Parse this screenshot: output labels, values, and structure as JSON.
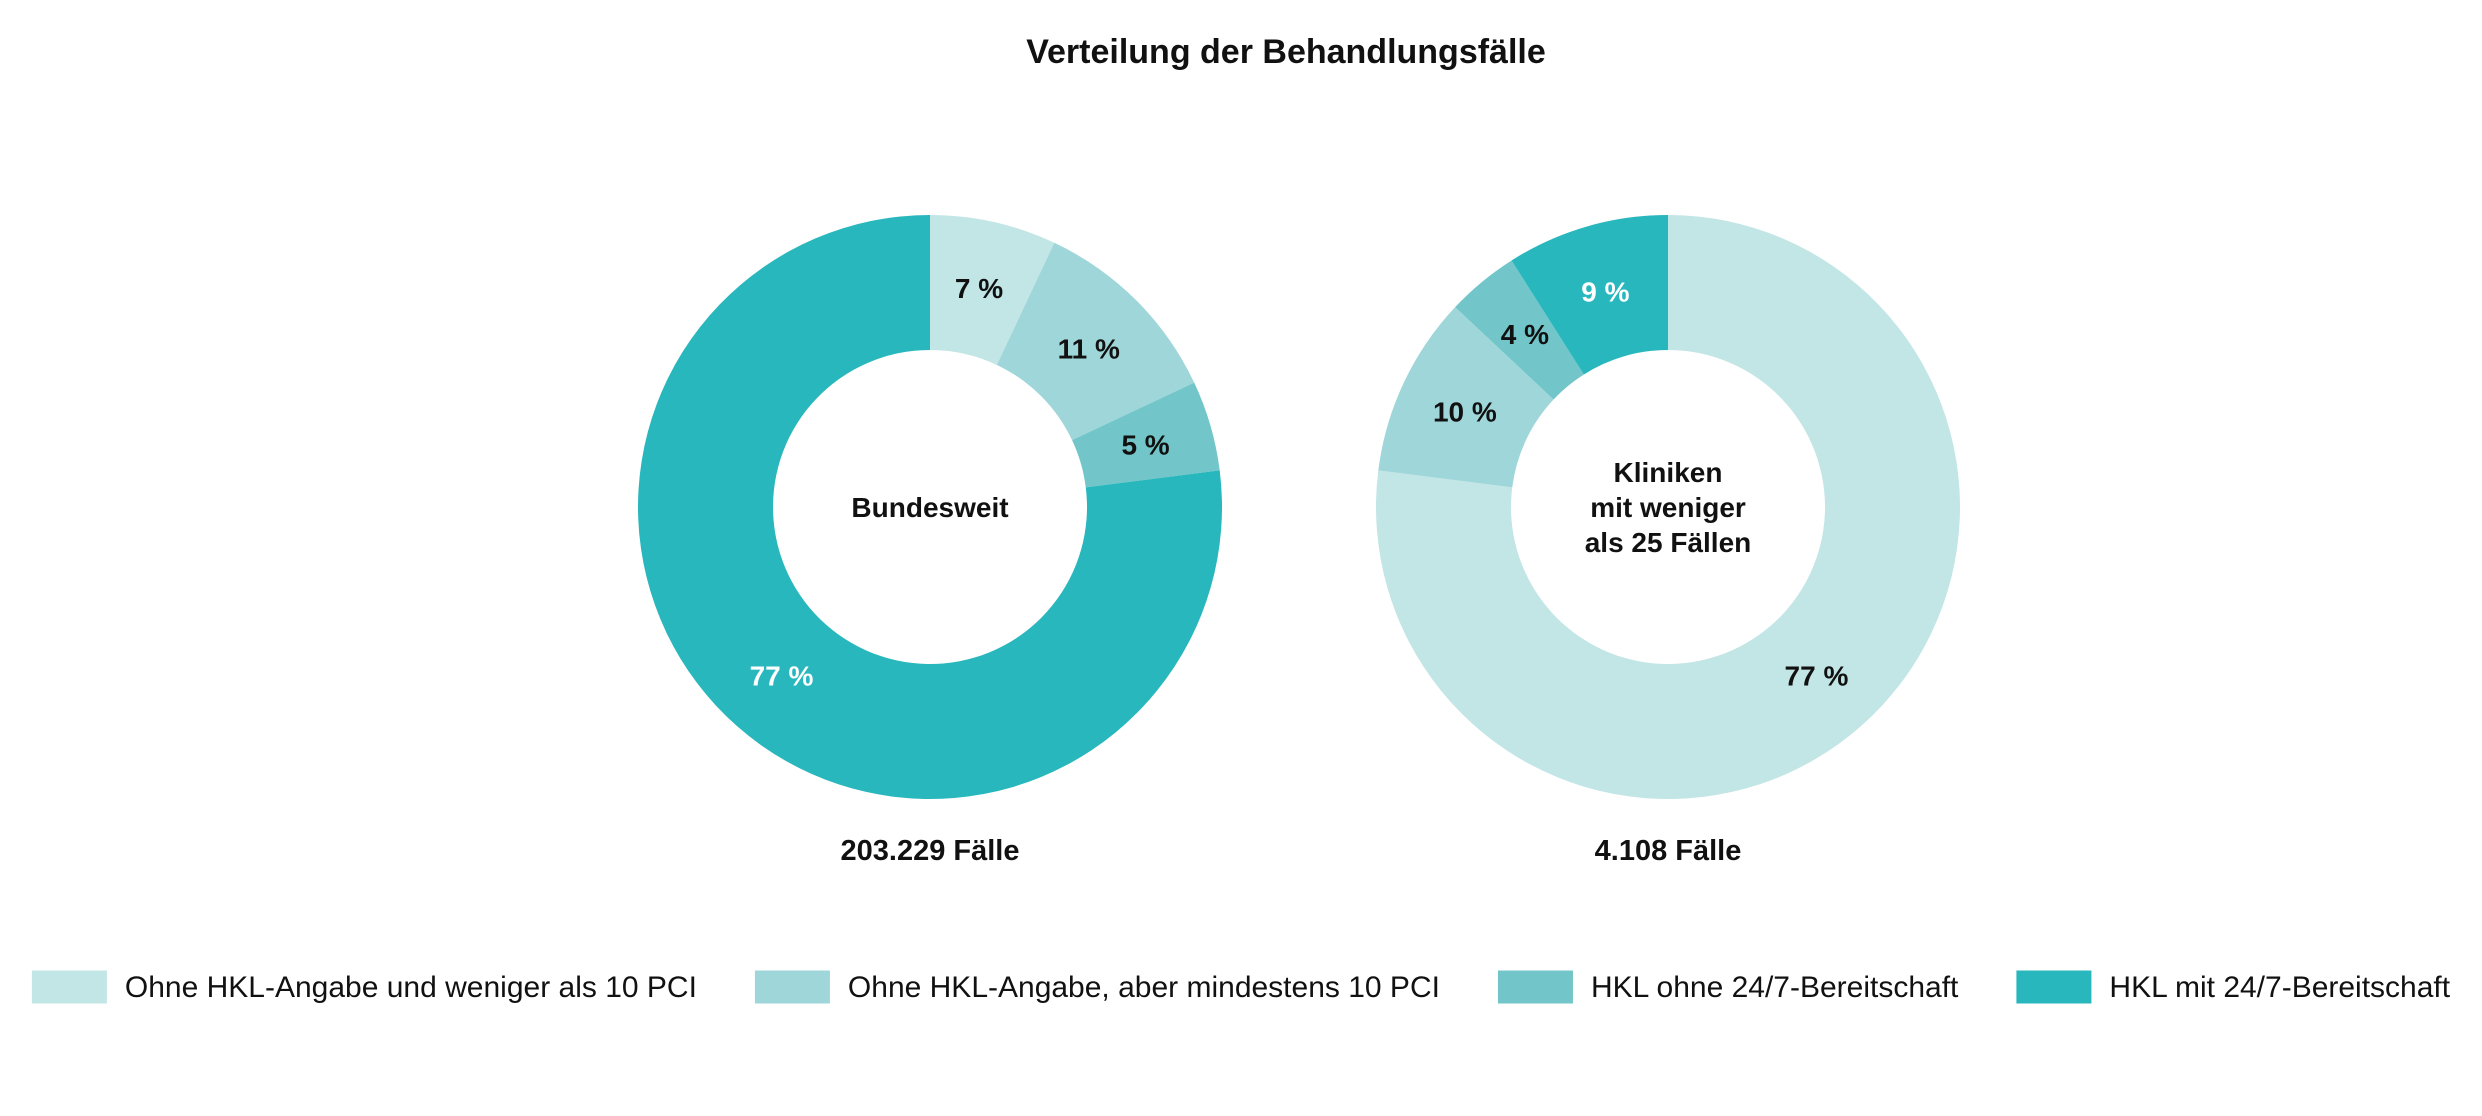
{
  "chart_data": {
    "type": "pie",
    "title": "Verteilung der Behandlungsfälle",
    "legend_position": "bottom",
    "categories": [
      "Ohne HKL-Angabe und weniger als 10 PCI",
      "Ohne HKL-Angabe, aber mindestens 10 PCI",
      "HKL ohne 24/7-Bereitschaft",
      "HKL mit 24/7-Bereitschaft"
    ],
    "colors": [
      "#c2e5e6",
      "#9fd6d9",
      "#72c5c8",
      "#27b7bd"
    ],
    "series": [
      {
        "center_label": [
          "Bundesweit"
        ],
        "total_label": "203.229 Fälle",
        "values": [
          7,
          11,
          5,
          77
        ],
        "value_labels": [
          "7 %",
          "11 %",
          "5 %",
          "77 %"
        ],
        "label_colors": [
          "#111111",
          "#111111",
          "#111111",
          "#ffffff"
        ]
      },
      {
        "center_label": [
          "Kliniken",
          "mit weniger",
          "als 25 Fällen"
        ],
        "total_label": "4.108 Fälle",
        "values": [
          77,
          10,
          4,
          9
        ],
        "value_labels": [
          "77 %",
          "10 %",
          "4 %",
          "9 %"
        ],
        "label_colors": [
          "#111111",
          "#111111",
          "#111111",
          "#ffffff"
        ]
      }
    ]
  }
}
